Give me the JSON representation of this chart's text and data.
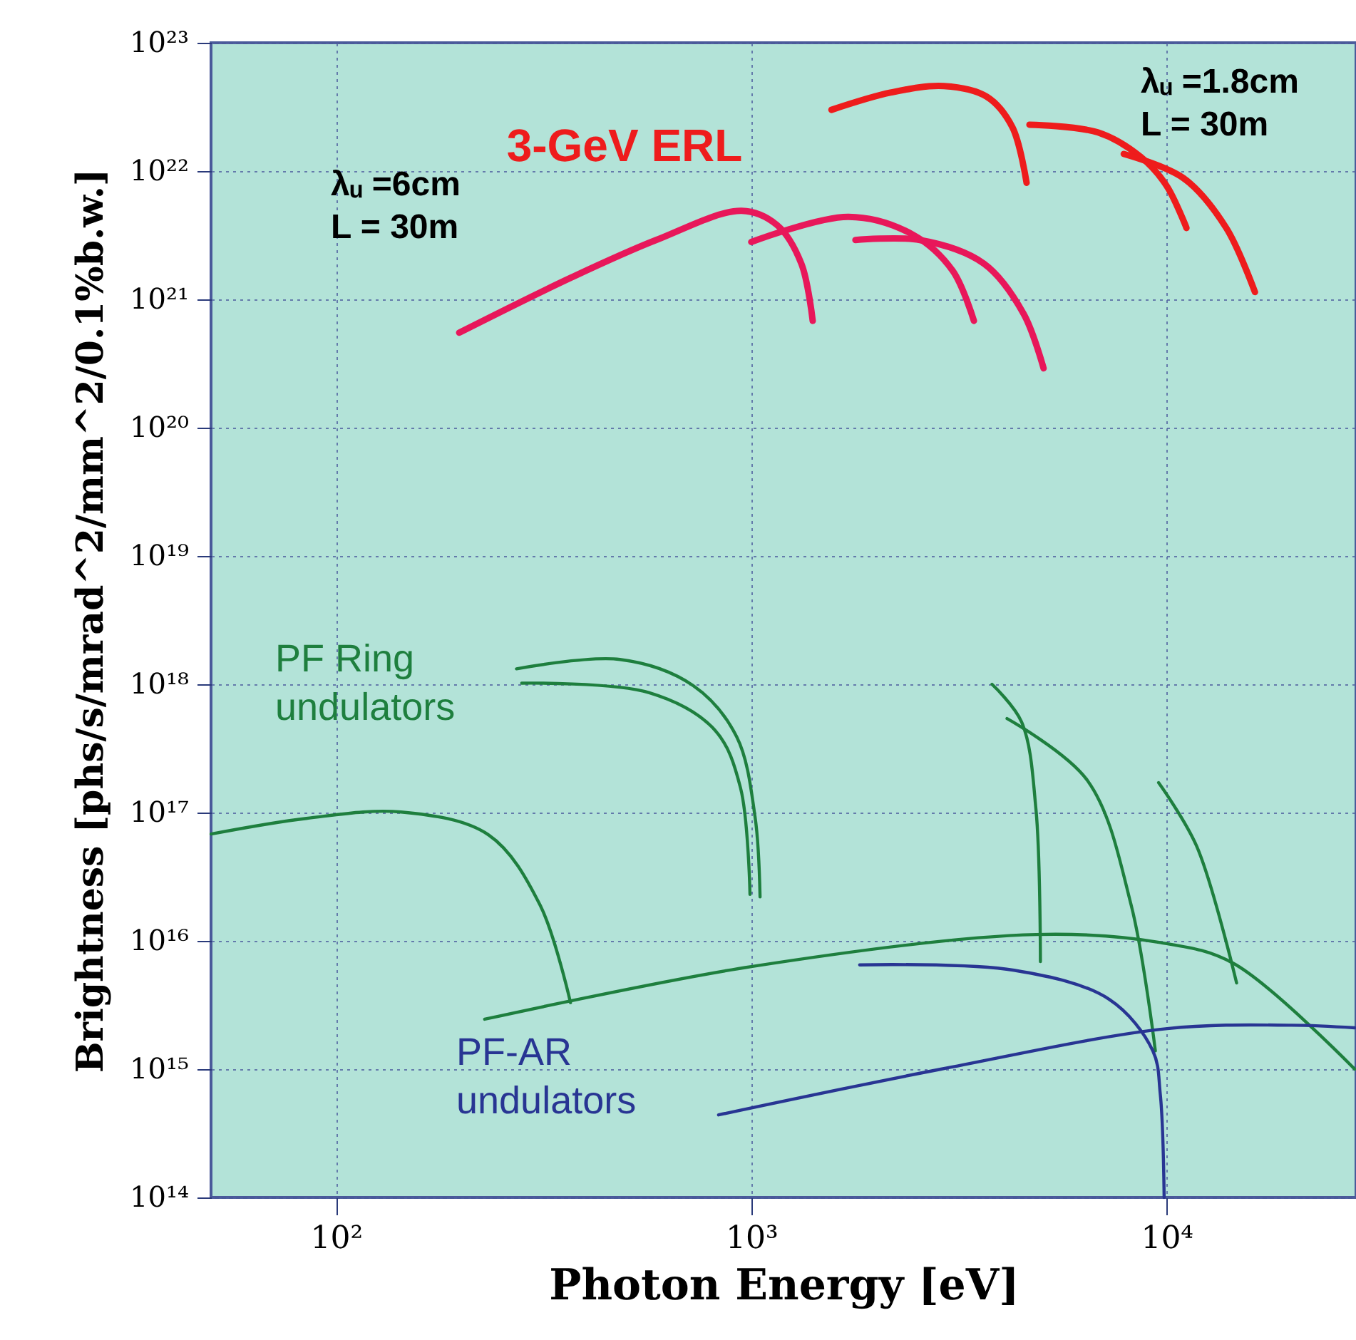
{
  "chart_data": {
    "type": "line",
    "xlabel": "Photon Energy [eV]",
    "ylabel": "Brightness [phs/s/mrad^2/mm^2/0.1%b.w.]",
    "log": "xy",
    "grid": true,
    "legend": false,
    "line_style": "solid",
    "marker": "none",
    "xlim": [
      50,
      28600
    ],
    "ylim": [
      100000000000000.0,
      1e+23
    ],
    "xticks": [
      {
        "value": 100,
        "label": "10²"
      },
      {
        "value": 1000,
        "label": "10³"
      },
      {
        "value": 10000,
        "label": "10⁴"
      }
    ],
    "yticks": [
      {
        "value": 100000000000000.0,
        "label": "10¹⁴"
      },
      {
        "value": 1000000000000000.0,
        "label": "10¹⁵"
      },
      {
        "value": 1e+16,
        "label": "10¹⁶"
      },
      {
        "value": 1e+17,
        "label": "10¹⁷"
      },
      {
        "value": 1e+18,
        "label": "10¹⁸"
      },
      {
        "value": 1e+19,
        "label": "10¹⁹"
      },
      {
        "value": 1e+20,
        "label": "10²⁰"
      },
      {
        "value": 1e+21,
        "label": "10²¹"
      },
      {
        "value": 1e+22,
        "label": "10²²"
      },
      {
        "value": 1e+23,
        "label": "10²³"
      }
    ],
    "annotations": [
      "3-GeV ERL",
      "λᵤ =6cm\nL = 30m",
      "λᵤ =1.8cm\nL = 30m",
      "PF Ring\nundulators",
      "PF-AR\nundulators"
    ],
    "series": [
      {
        "color": "#e8175a",
        "x": [
          198,
          367,
          590,
          948,
          1153,
          1320,
          1406
        ],
        "values": [
          5.5e+20,
          1.47e+21,
          2.9e+21,
          4.9e+21,
          3.8e+21,
          1.9e+21,
          6.8e+20
        ]
      },
      {
        "color": "#e8175a",
        "x": [
          1000,
          1714,
          2448,
          3056,
          3437
        ],
        "values": [
          2.8e+21,
          4.4e+21,
          3.2e+21,
          1.67e+21,
          6.8e+20
        ]
      },
      {
        "color": "#e8175a",
        "x": [
          1782,
          2547,
          3633,
          4530,
          5058
        ],
        "values": [
          2.9e+21,
          2.9e+21,
          1.9e+21,
          7.7e+20,
          2.9e+20
        ]
      },
      {
        "color": "#ee1c1c",
        "x": [
          1560,
          2174,
          2912,
          3690,
          4254,
          4603
        ],
        "values": [
          3e+22,
          4.1e+22,
          4.6e+22,
          3.8e+22,
          2.2e+22,
          8.1e+21
        ]
      },
      {
        "color": "#ee1c1c",
        "x": [
          4677,
          6839,
          8665,
          10000,
          11170
        ],
        "values": [
          2.3e+22,
          2e+22,
          1.29e+22,
          7.7e+21,
          3.6e+21
        ]
      },
      {
        "color": "#ee1c1c",
        "x": [
          7890,
          10990,
          13930,
          16330
        ],
        "values": [
          1.36e+22,
          8.8e+21,
          3.6e+21,
          1.14e+21
        ]
      },
      {
        "color": "#1e7f3e",
        "x": [
          272,
          483,
          725,
          922,
          1021,
          1050
        ],
        "values": [
          1.32e+18,
          1.56e+18,
          9.75e+17,
          3.9e+17,
          9.3e+16,
          2.2e+16
        ]
      },
      {
        "color": "#1e7f3e",
        "x": [
          280,
          568,
          817,
          942,
          993
        ],
        "values": [
          1.02e+18,
          8.6e+17,
          4.4e+17,
          1.56e+17,
          2.3e+16
        ]
      },
      {
        "color": "#1e7f3e",
        "x": [
          50,
          84.8,
          143.5,
          233,
          310,
          367
        ],
        "values": [
          6.8e+16,
          9e+16,
          1.01e+17,
          6.7e+16,
          1.9e+16,
          3300000000000000.0
        ]
      },
      {
        "color": "#1e7f3e",
        "x": [
          228,
          1000,
          4850,
          9660,
          14460,
          28400
        ],
        "values": [
          2450000000000000.0,
          6300000000000000.0,
          1.12e+16,
          9700000000000000.0,
          6700000000000000.0,
          1000000000000000.0
        ]
      },
      {
        "color": "#1e7f3e",
        "x": [
          3800,
          4475,
          4850,
          4970
        ],
        "values": [
          1e+18,
          5.1e+17,
          1.05e+17,
          6900000000000000.0
        ]
      },
      {
        "color": "#1e7f3e",
        "x": [
          4130,
          6450,
          8220,
          9400
        ],
        "values": [
          5.4e+17,
          1.78e+17,
          1.9e+16,
          1390000000000000.0
        ]
      },
      {
        "color": "#1e7f3e",
        "x": [
          9570,
          11810,
          14750
        ],
        "values": [
          1.71e+17,
          5.5e+16,
          4700000000000000.0
        ]
      },
      {
        "color": "#283593",
        "x": [
          1824,
          4295,
          7280,
          9270,
          9660,
          9870
        ],
        "values": [
          6500000000000000.0,
          5900000000000000.0,
          3500000000000000.0,
          1390000000000000.0,
          640000000000000.0,
          100000000000000.0
        ]
      },
      {
        "color": "#283593",
        "x": [
          834,
          2863,
          10040,
          20000,
          28400
        ],
        "values": [
          440000000000000.0,
          1000000000000000.0,
          2070000000000000.0,
          2200000000000000.0,
          2100000000000000.0
        ]
      }
    ]
  }
}
